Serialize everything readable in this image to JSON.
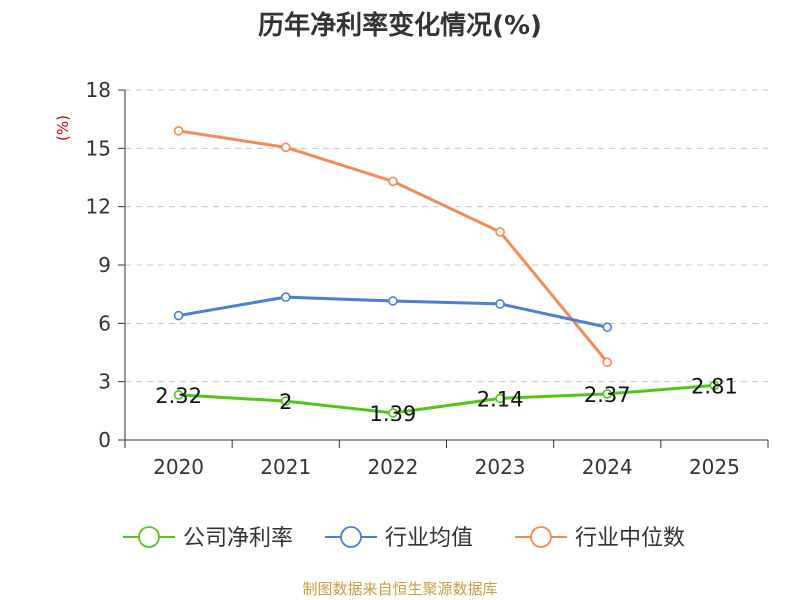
{
  "chart_data": {
    "type": "line",
    "title": "历年净利率变化情况(%)",
    "ylabel": "(%)",
    "xlabel": "",
    "categories": [
      "2020",
      "2021",
      "2022",
      "2023",
      "2024",
      "2025"
    ],
    "ylim": [
      0,
      18
    ],
    "yticks": [
      0,
      3,
      6,
      9,
      12,
      15,
      18
    ],
    "grid": true,
    "legend_position": "bottom",
    "series": [
      {
        "name": "公司净利率",
        "color": "#52c41a",
        "values": [
          2.32,
          2,
          1.39,
          2.14,
          2.37,
          2.81
        ],
        "labels": [
          "2.32",
          "2",
          "1.39",
          "2.14",
          "2.37",
          "2.81"
        ]
      },
      {
        "name": "行业均值",
        "color": "#4a7fd8",
        "values": [
          6.4,
          7.35,
          7.15,
          7.0,
          5.8,
          null
        ]
      },
      {
        "name": "行业中位数",
        "color": "#f28b54",
        "values": [
          15.9,
          15.05,
          13.3,
          10.7,
          4.0,
          null
        ]
      }
    ],
    "source": "制图数据来自恒生聚源数据库"
  }
}
